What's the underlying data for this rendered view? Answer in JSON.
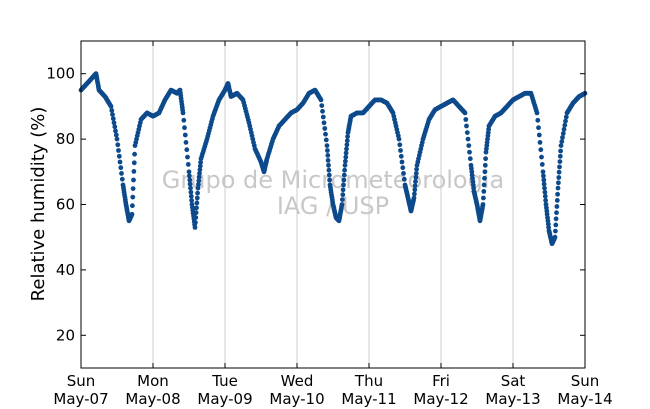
{
  "chart_data": {
    "type": "scatter",
    "title": "",
    "xlabel": "",
    "ylabel": "Relative humidity (%)",
    "xlim": [
      "2006-05-07T00:00",
      "2006-05-14T00:00"
    ],
    "ylim": [
      10,
      110
    ],
    "y_ticks": [
      20,
      40,
      60,
      80,
      100
    ],
    "x_ticks": [
      {
        "day": "Sun",
        "date": "May-07"
      },
      {
        "day": "Mon",
        "date": "May-08"
      },
      {
        "day": "Tue",
        "date": "May-09"
      },
      {
        "day": "Wed",
        "date": "May-10"
      },
      {
        "day": "Thu",
        "date": "May-11"
      },
      {
        "day": "Fri",
        "date": "May-12"
      },
      {
        "day": "Sat",
        "date": "May-13"
      },
      {
        "day": "Sun",
        "date": "May-14"
      }
    ],
    "grid": "vertical",
    "marker_color": "#0d4a8c",
    "watermark": [
      "Grupo de Micrometeorologia",
      "IAG / USP"
    ],
    "series": [
      {
        "points": [
          [
            "05-07 00:00",
            95
          ],
          [
            "05-07 02:00",
            97
          ],
          [
            "05-07 04:00",
            99
          ],
          [
            "05-07 05:00",
            100
          ],
          [
            "05-07 06:00",
            95
          ],
          [
            "05-07 08:00",
            93
          ],
          [
            "05-07 10:00",
            90
          ],
          [
            "05-07 12:00",
            80
          ],
          [
            "05-07 14:00",
            66
          ],
          [
            "05-07 15:00",
            60
          ],
          [
            "05-07 16:00",
            55
          ],
          [
            "05-07 17:00",
            57
          ],
          [
            "05-07 18:00",
            78
          ],
          [
            "05-07 20:00",
            86
          ],
          [
            "05-07 22:00",
            88
          ],
          [
            "05-08 00:00",
            87
          ],
          [
            "05-08 02:00",
            88
          ],
          [
            "05-08 04:00",
            92
          ],
          [
            "05-08 06:00",
            95
          ],
          [
            "05-08 08:00",
            94
          ],
          [
            "05-08 09:00",
            95
          ],
          [
            "05-08 10:00",
            88
          ],
          [
            "05-08 12:00",
            70
          ],
          [
            "05-08 13:00",
            60
          ],
          [
            "05-08 14:00",
            53
          ],
          [
            "05-08 15:00",
            65
          ],
          [
            "05-08 16:00",
            74
          ],
          [
            "05-08 18:00",
            80
          ],
          [
            "05-08 20:00",
            87
          ],
          [
            "05-08 22:00",
            92
          ],
          [
            "05-09 00:00",
            95
          ],
          [
            "05-09 01:00",
            97
          ],
          [
            "05-09 02:00",
            93
          ],
          [
            "05-09 04:00",
            94
          ],
          [
            "05-09 06:00",
            92
          ],
          [
            "05-09 08:00",
            85
          ],
          [
            "05-09 10:00",
            77
          ],
          [
            "05-09 12:00",
            73
          ],
          [
            "05-09 13:00",
            70
          ],
          [
            "05-09 14:00",
            74
          ],
          [
            "05-09 16:00",
            80
          ],
          [
            "05-09 18:00",
            84
          ],
          [
            "05-09 20:00",
            86
          ],
          [
            "05-09 22:00",
            88
          ],
          [
            "05-10 00:00",
            89
          ],
          [
            "05-10 02:00",
            91
          ],
          [
            "05-10 04:00",
            94
          ],
          [
            "05-10 06:00",
            95
          ],
          [
            "05-10 08:00",
            92
          ],
          [
            "05-10 10:00",
            78
          ],
          [
            "05-10 11:00",
            66
          ],
          [
            "05-10 12:00",
            60
          ],
          [
            "05-10 13:00",
            56
          ],
          [
            "05-10 14:00",
            55
          ],
          [
            "05-10 15:00",
            60
          ],
          [
            "05-10 16:00",
            72
          ],
          [
            "05-10 17:00",
            82
          ],
          [
            "05-10 18:00",
            87
          ],
          [
            "05-10 20:00",
            88
          ],
          [
            "05-10 22:00",
            88
          ],
          [
            "05-11 00:00",
            90
          ],
          [
            "05-11 02:00",
            92
          ],
          [
            "05-11 04:00",
            92
          ],
          [
            "05-11 06:00",
            91
          ],
          [
            "05-11 08:00",
            88
          ],
          [
            "05-11 10:00",
            80
          ],
          [
            "05-11 12:00",
            66
          ],
          [
            "05-11 13:00",
            62
          ],
          [
            "05-11 14:00",
            58
          ],
          [
            "05-11 15:00",
            62
          ],
          [
            "05-11 16:00",
            72
          ],
          [
            "05-11 18:00",
            80
          ],
          [
            "05-11 20:00",
            86
          ],
          [
            "05-11 22:00",
            89
          ],
          [
            "05-12 00:00",
            90
          ],
          [
            "05-12 02:00",
            91
          ],
          [
            "05-12 04:00",
            92
          ],
          [
            "05-12 06:00",
            90
          ],
          [
            "05-12 08:00",
            88
          ],
          [
            "05-12 10:00",
            72
          ],
          [
            "05-12 11:00",
            64
          ],
          [
            "05-12 12:00",
            60
          ],
          [
            "05-12 13:00",
            55
          ],
          [
            "05-12 14:00",
            60
          ],
          [
            "05-12 15:00",
            76
          ],
          [
            "05-12 16:00",
            84
          ],
          [
            "05-12 18:00",
            87
          ],
          [
            "05-12 20:00",
            88
          ],
          [
            "05-12 22:00",
            90
          ],
          [
            "05-13 00:00",
            92
          ],
          [
            "05-13 02:00",
            93
          ],
          [
            "05-13 04:00",
            94
          ],
          [
            "05-13 06:00",
            94
          ],
          [
            "05-13 08:00",
            88
          ],
          [
            "05-13 10:00",
            70
          ],
          [
            "05-13 11:00",
            60
          ],
          [
            "05-13 12:00",
            52
          ],
          [
            "05-13 13:00",
            48
          ],
          [
            "05-13 14:00",
            50
          ],
          [
            "05-13 15:00",
            65
          ],
          [
            "05-13 16:00",
            78
          ],
          [
            "05-13 18:00",
            88
          ],
          [
            "05-13 20:00",
            91
          ],
          [
            "05-13 22:00",
            93
          ],
          [
            "05-14 00:00",
            94
          ]
        ]
      }
    ]
  }
}
